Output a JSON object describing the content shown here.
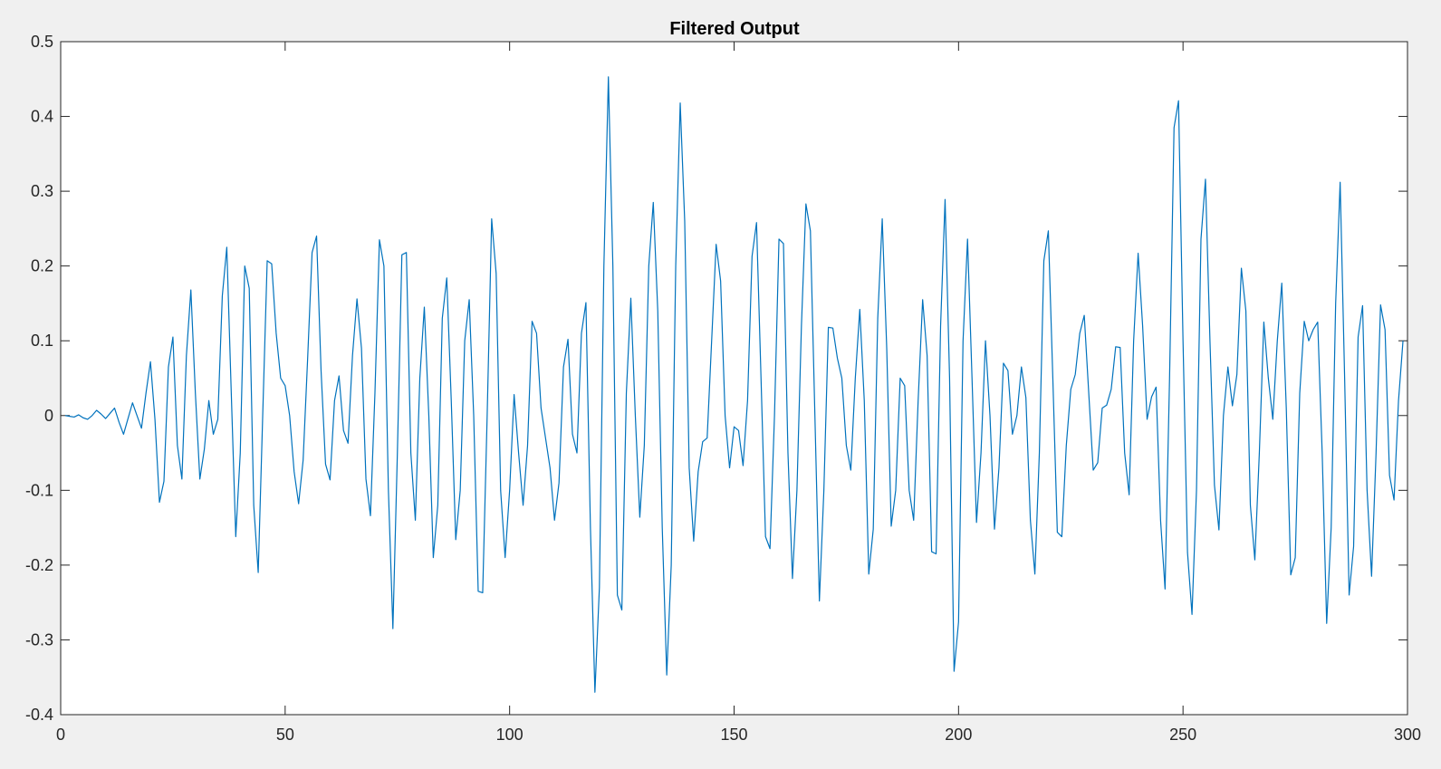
{
  "chart_data": {
    "type": "line",
    "title": "Filtered Output",
    "xlabel": "",
    "ylabel": "",
    "xlim": [
      0,
      300
    ],
    "ylim": [
      -0.4,
      0.5
    ],
    "grid": false,
    "x_ticks": [
      {
        "value": 0,
        "label": "0"
      },
      {
        "value": 50,
        "label": "50"
      },
      {
        "value": 100,
        "label": "100"
      },
      {
        "value": 150,
        "label": "150"
      },
      {
        "value": 200,
        "label": "200"
      },
      {
        "value": 250,
        "label": "250"
      },
      {
        "value": 300,
        "label": "300"
      }
    ],
    "y_ticks": [
      {
        "value": -0.4,
        "label": "-0.4"
      },
      {
        "value": -0.3,
        "label": "-0.3"
      },
      {
        "value": -0.2,
        "label": "-0.2"
      },
      {
        "value": -0.1,
        "label": "-0.1"
      },
      {
        "value": 0,
        "label": "0"
      },
      {
        "value": 0.1,
        "label": "0.1"
      },
      {
        "value": 0.2,
        "label": "0.2"
      },
      {
        "value": 0.3,
        "label": "0.3"
      },
      {
        "value": 0.4,
        "label": "0.4"
      },
      {
        "value": 0.5,
        "label": "0.5"
      }
    ],
    "line_color": "#0072bd",
    "x_start": 1,
    "series": [
      {
        "values": [
          0.0,
          -0.001,
          -0.002,
          0.001,
          -0.003,
          -0.005,
          0.0,
          0.007,
          0.002,
          -0.004,
          0.003,
          0.01,
          -0.009,
          -0.025,
          -0.004,
          0.017,
          0.0,
          -0.017,
          0.03,
          0.072,
          -0.005,
          -0.116,
          -0.088,
          0.065,
          0.105,
          -0.04,
          -0.085,
          0.08,
          0.168,
          0.03,
          -0.085,
          -0.045,
          0.02,
          -0.025,
          -0.005,
          0.16,
          0.225,
          0.03,
          -0.162,
          -0.05,
          0.2,
          0.17,
          -0.12,
          -0.21,
          0.0,
          0.207,
          0.203,
          0.11,
          0.05,
          0.04,
          0.0,
          -0.075,
          -0.118,
          -0.06,
          0.075,
          0.218,
          0.24,
          0.06,
          -0.065,
          -0.086,
          0.02,
          0.053,
          -0.02,
          -0.037,
          0.08,
          0.156,
          0.09,
          -0.085,
          -0.134,
          0.03,
          0.235,
          0.2,
          -0.1,
          -0.285,
          -0.05,
          0.215,
          0.218,
          -0.05,
          -0.14,
          0.05,
          0.145,
          0.0,
          -0.19,
          -0.12,
          0.13,
          0.184,
          0.02,
          -0.166,
          -0.1,
          0.1,
          0.155,
          0.0,
          -0.235,
          -0.237,
          0.0,
          0.263,
          0.19,
          -0.1,
          -0.19,
          -0.1,
          0.028,
          -0.05,
          -0.12,
          -0.04,
          0.126,
          0.11,
          0.01,
          -0.03,
          -0.07,
          -0.14,
          -0.09,
          0.065,
          0.102,
          -0.025,
          -0.05,
          0.11,
          0.151,
          -0.15,
          -0.37,
          -0.23,
          0.2,
          0.453,
          0.2,
          -0.24,
          -0.26,
          0.03,
          0.157,
          0.0,
          -0.136,
          -0.04,
          0.2,
          0.285,
          0.14,
          -0.15,
          -0.347,
          -0.2,
          0.2,
          0.418,
          0.26,
          -0.07,
          -0.168,
          -0.075,
          -0.035,
          -0.03,
          0.1,
          0.229,
          0.18,
          0.0,
          -0.07,
          -0.015,
          -0.02,
          -0.067,
          0.02,
          0.213,
          0.258,
          0.05,
          -0.162,
          -0.178,
          0.0,
          0.236,
          0.23,
          -0.05,
          -0.218,
          -0.1,
          0.12,
          0.283,
          0.247,
          0.0,
          -0.248,
          -0.1,
          0.118,
          0.117,
          0.077,
          0.05,
          -0.04,
          -0.073,
          0.05,
          0.142,
          0.02,
          -0.212,
          -0.152,
          0.13,
          0.263,
          0.09,
          -0.148,
          -0.1,
          0.05,
          0.04,
          -0.1,
          -0.14,
          0.02,
          0.155,
          0.08,
          -0.182,
          -0.185,
          0.12,
          0.289,
          0.05,
          -0.342,
          -0.276,
          0.1,
          0.236,
          0.05,
          -0.143,
          -0.05,
          0.1,
          0.0,
          -0.152,
          -0.07,
          0.07,
          0.06,
          -0.025,
          0.0,
          0.065,
          0.024,
          -0.14,
          -0.212,
          -0.05,
          0.207,
          0.247,
          0.05,
          -0.156,
          -0.162,
          -0.04,
          0.035,
          0.055,
          0.11,
          0.134,
          0.03,
          -0.073,
          -0.063,
          0.01,
          0.014,
          0.035,
          0.092,
          0.091,
          -0.05,
          -0.106,
          0.1,
          0.217,
          0.12,
          -0.005,
          0.025,
          0.038,
          -0.14,
          -0.232,
          0.05,
          0.385,
          0.421,
          0.1,
          -0.183,
          -0.266,
          -0.1,
          0.236,
          0.316,
          0.1,
          -0.093,
          -0.153,
          0.0,
          0.065,
          0.013,
          0.055,
          0.197,
          0.14,
          -0.12,
          -0.193,
          -0.05,
          0.125,
          0.05,
          -0.005,
          0.1,
          0.177,
          0.01,
          -0.213,
          -0.19,
          0.03,
          0.126,
          0.1,
          0.115,
          0.125,
          -0.05,
          -0.278,
          -0.15,
          0.15,
          0.312,
          0.05,
          -0.24,
          -0.175,
          0.105,
          0.147,
          -0.1,
          -0.215,
          -0.05,
          0.148,
          0.115,
          -0.08,
          -0.113,
          0.02,
          0.1
        ]
      }
    ]
  }
}
